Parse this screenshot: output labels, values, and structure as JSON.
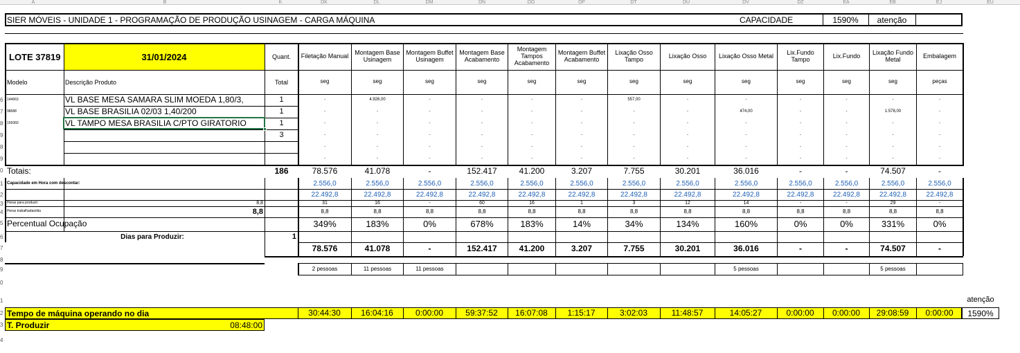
{
  "column_letters": [
    "A",
    "B",
    "K",
    "DK",
    "DL",
    "DM",
    "DN",
    "DO",
    "DP",
    "DT",
    "DU",
    "DV",
    "DZ",
    "EA",
    "EB",
    "EJ",
    "EU"
  ],
  "header": {
    "title": "SIER MÓVEIS - UNIDADE 1 - PROGRAMAÇÃO DE PRODUÇÃO USINAGEM - CARGA MÁQUINA",
    "capacidade_label": "CAPACIDADE",
    "capacidade_value": "1590%",
    "atencao": "atenção"
  },
  "lote": {
    "label": "LOTE 37819",
    "date": "31/01/2024",
    "quant_label": "Quant.",
    "total_label": "Total"
  },
  "labels": {
    "modelo": "Modelo",
    "descricao": "Descrição Produto"
  },
  "stations": [
    {
      "name": "Filetação Manual",
      "unit": "seg"
    },
    {
      "name": "Montagem Base Usinagem",
      "unit": "seg"
    },
    {
      "name": "Montagem Buffet Usinagem",
      "unit": "seg"
    },
    {
      "name": "Montagem Base Acabamento",
      "unit": "seg"
    },
    {
      "name": "Montagem Tampos Acabamento",
      "unit": "seg"
    },
    {
      "name": "Montagem Buffet Acabamento",
      "unit": "seg"
    },
    {
      "name": "Lixação Osso Tampo",
      "unit": "seg"
    },
    {
      "name": "Lixação Osso",
      "unit": "seg"
    },
    {
      "name": "Lixação Osso Metal",
      "unit": "seg"
    },
    {
      "name": "Lix.Fundo Tampo",
      "unit": "seg"
    },
    {
      "name": "Lix.Fundo",
      "unit": "seg"
    },
    {
      "name": "Lixação Fundo Metal",
      "unit": "seg"
    },
    {
      "name": "Embalagem",
      "unit": "peças"
    }
  ],
  "products": [
    {
      "model": "144663",
      "desc": "VL BASE MESA SAMARA SLIM MOEDA 1,80/3,",
      "qty": "1",
      "values": [
        "-",
        "4.926,00",
        "-",
        "-",
        "-",
        "-",
        "557,00",
        "-",
        "-",
        "-",
        "-",
        "-",
        "-"
      ]
    },
    {
      "model": "98688",
      "desc": "VL BASE BRASILIA 02/03 1,40/200",
      "qty": "1",
      "values": [
        "-",
        "-",
        "-",
        "-",
        "-",
        "-",
        "-",
        "-",
        "474,00",
        "-",
        "-",
        "1.578,00",
        "-"
      ]
    },
    {
      "model": "159360",
      "desc": "VL TAMPO MESA BRASILIA C/PTO GIRATORIO",
      "qty": "1",
      "values": [
        "-",
        "-",
        "-",
        "-",
        "-",
        "-",
        "-",
        "-",
        "-",
        "-",
        "-",
        "-",
        "-"
      ]
    },
    {
      "model": "",
      "desc": "",
      "qty": "3",
      "values": [
        "-",
        "-",
        "-",
        "-",
        "-",
        "-",
        "-",
        "-",
        "-",
        "-",
        "-",
        "-",
        "-"
      ]
    },
    {
      "model": "",
      "desc": "",
      "qty": "",
      "values": [
        "-",
        "-",
        "-",
        "-",
        "-",
        "-",
        "-",
        "-",
        "-",
        "-",
        "-",
        "-",
        "-"
      ]
    },
    {
      "model": "",
      "desc": "",
      "qty": "",
      "values": [
        "-",
        "-",
        "-",
        "-",
        "-",
        "-",
        "-",
        "-",
        "-",
        "-",
        "-",
        "-",
        "-"
      ]
    }
  ],
  "totais": {
    "label": "Totais:",
    "qty": "186",
    "values": [
      "78.576",
      "41.078",
      "-",
      "152.417",
      "41.200",
      "3.207",
      "7.755",
      "30.201",
      "36.016",
      "-",
      "-",
      "74.507",
      "-"
    ]
  },
  "capacidade_row": {
    "label": "Capacidade em Hora com descontar:",
    "values": [
      "2.556,0",
      "2.556,0",
      "2.556,0",
      "2.556,0",
      "2.556,0",
      "2.556,0",
      "2.556,0",
      "2.556,0",
      "2.556,0",
      "2.556,0",
      "2.556,0",
      "2.556,0",
      "2.556,0"
    ]
  },
  "row2": {
    "values": [
      "22.492,8",
      "22.492,8",
      "22.492,8",
      "22.492,8",
      "22.492,8",
      "22.492,8",
      "22.492,8",
      "22.492,8",
      "22.492,8",
      "22.492,8",
      "22.492,8",
      "22.492,8",
      "22.492,8"
    ]
  },
  "horas_produzir": {
    "label": "Horas para produzir:",
    "value": "8,8",
    "values": [
      "31",
      "16",
      "-",
      "60",
      "16",
      "1",
      "3",
      "12",
      "14",
      "-",
      "-",
      "29",
      "-"
    ]
  },
  "horas_trabalhadas": {
    "label": "Horas trabalhadas/dia",
    "value": "8,8",
    "values": [
      "8,8",
      "8,8",
      "8,8",
      "8,8",
      "8,8",
      "8,8",
      "8,8",
      "8,8",
      "8,8",
      "8,8",
      "8,8",
      "8,8",
      "8,8"
    ]
  },
  "percentual": {
    "label": "Percentual Ocupação",
    "values": [
      "349%",
      "183%",
      "0%",
      "678%",
      "183%",
      "14%",
      "34%",
      "134%",
      "160%",
      "0%",
      "0%",
      "331%",
      "0%"
    ]
  },
  "dias": {
    "label": "Dias para Produzir:",
    "value": "1"
  },
  "totals2": {
    "values": [
      "78.576",
      "41.078",
      "-",
      "152.417",
      "41.200",
      "3.207",
      "7.755",
      "30.201",
      "36.016",
      "-",
      "-",
      "74.507",
      "-"
    ]
  },
  "pessoas": {
    "values": [
      "2 pessoas",
      "11 pessoas",
      "11 pessoas",
      "",
      "",
      "",
      "",
      "",
      "5 pessoas",
      "",
      "",
      "5 pessoas",
      ""
    ]
  },
  "tempo": {
    "label": "Tempo de máquina operando no dia",
    "values": [
      "30:44:30",
      "16:04:16",
      "0:00:00",
      "59:37:52",
      "16:07:08",
      "1:15:17",
      "3:02:03",
      "11:48:57",
      "14:05:27",
      "0:00:00",
      "0:00:00",
      "29:08:59",
      "0:00:00"
    ],
    "atencao": "atenção",
    "pct": "1590%"
  },
  "produzir": {
    "label": "T. Produzir",
    "value": "08:48:00"
  },
  "row_numbers": [
    "6",
    "7",
    "8",
    "9",
    "8",
    "9",
    "0",
    "1",
    "2",
    "3",
    "4",
    "5",
    "6",
    "7",
    "8",
    "9",
    "0",
    "1",
    "2",
    "3",
    "4"
  ]
}
